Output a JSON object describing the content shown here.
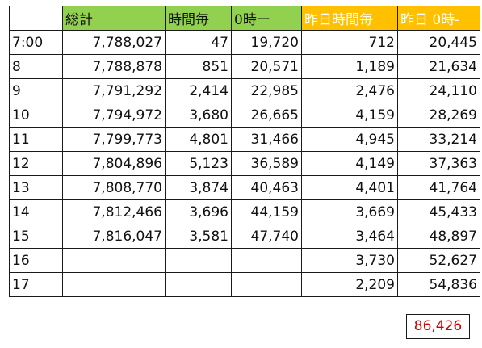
{
  "headers": [
    "総計",
    "時間毎",
    "0時ー",
    "昨日時間毎",
    "昨日 0時-"
  ],
  "rows": [
    {
      "label": "7:00",
      "values": [
        "7,788,027",
        "47",
        "19,720",
        "712",
        "20,445"
      ]
    },
    {
      "label": "8",
      "values": [
        "7,788,878",
        "851",
        "20,571",
        "1,189",
        "21,634"
      ]
    },
    {
      "label": "9",
      "values": [
        "7,791,292",
        "2,414",
        "22,985",
        "2,476",
        "24,110"
      ]
    },
    {
      "label": "10",
      "values": [
        "7,794,972",
        "3,680",
        "26,665",
        "4,159",
        "28,269"
      ]
    },
    {
      "label": "11",
      "values": [
        "7,799,773",
        "4,801",
        "31,466",
        "4,945",
        "33,214"
      ]
    },
    {
      "label": "12",
      "values": [
        "7,804,896",
        "5,123",
        "36,589",
        "4,149",
        "37,363"
      ]
    },
    {
      "label": "13",
      "values": [
        "7,808,770",
        "3,874",
        "40,463",
        "4,401",
        "41,764"
      ]
    },
    {
      "label": "14",
      "values": [
        "7,812,466",
        "3,696",
        "44,159",
        "3,669",
        "45,433"
      ]
    },
    {
      "label": "15",
      "values": [
        "7,816,047",
        "3,581",
        "47,740",
        "3,464",
        "48,897"
      ]
    },
    {
      "label": "16",
      "values": [
        "",
        "",
        "",
        "3,730",
        "52,627"
      ]
    },
    {
      "label": "17",
      "values": [
        "",
        "",
        "",
        "2,209",
        "54,836"
      ]
    }
  ],
  "total": "86,426",
  "colors": {
    "header_green": "#92d050",
    "header_amber": "#ffc000",
    "total_text": "#d00000"
  }
}
